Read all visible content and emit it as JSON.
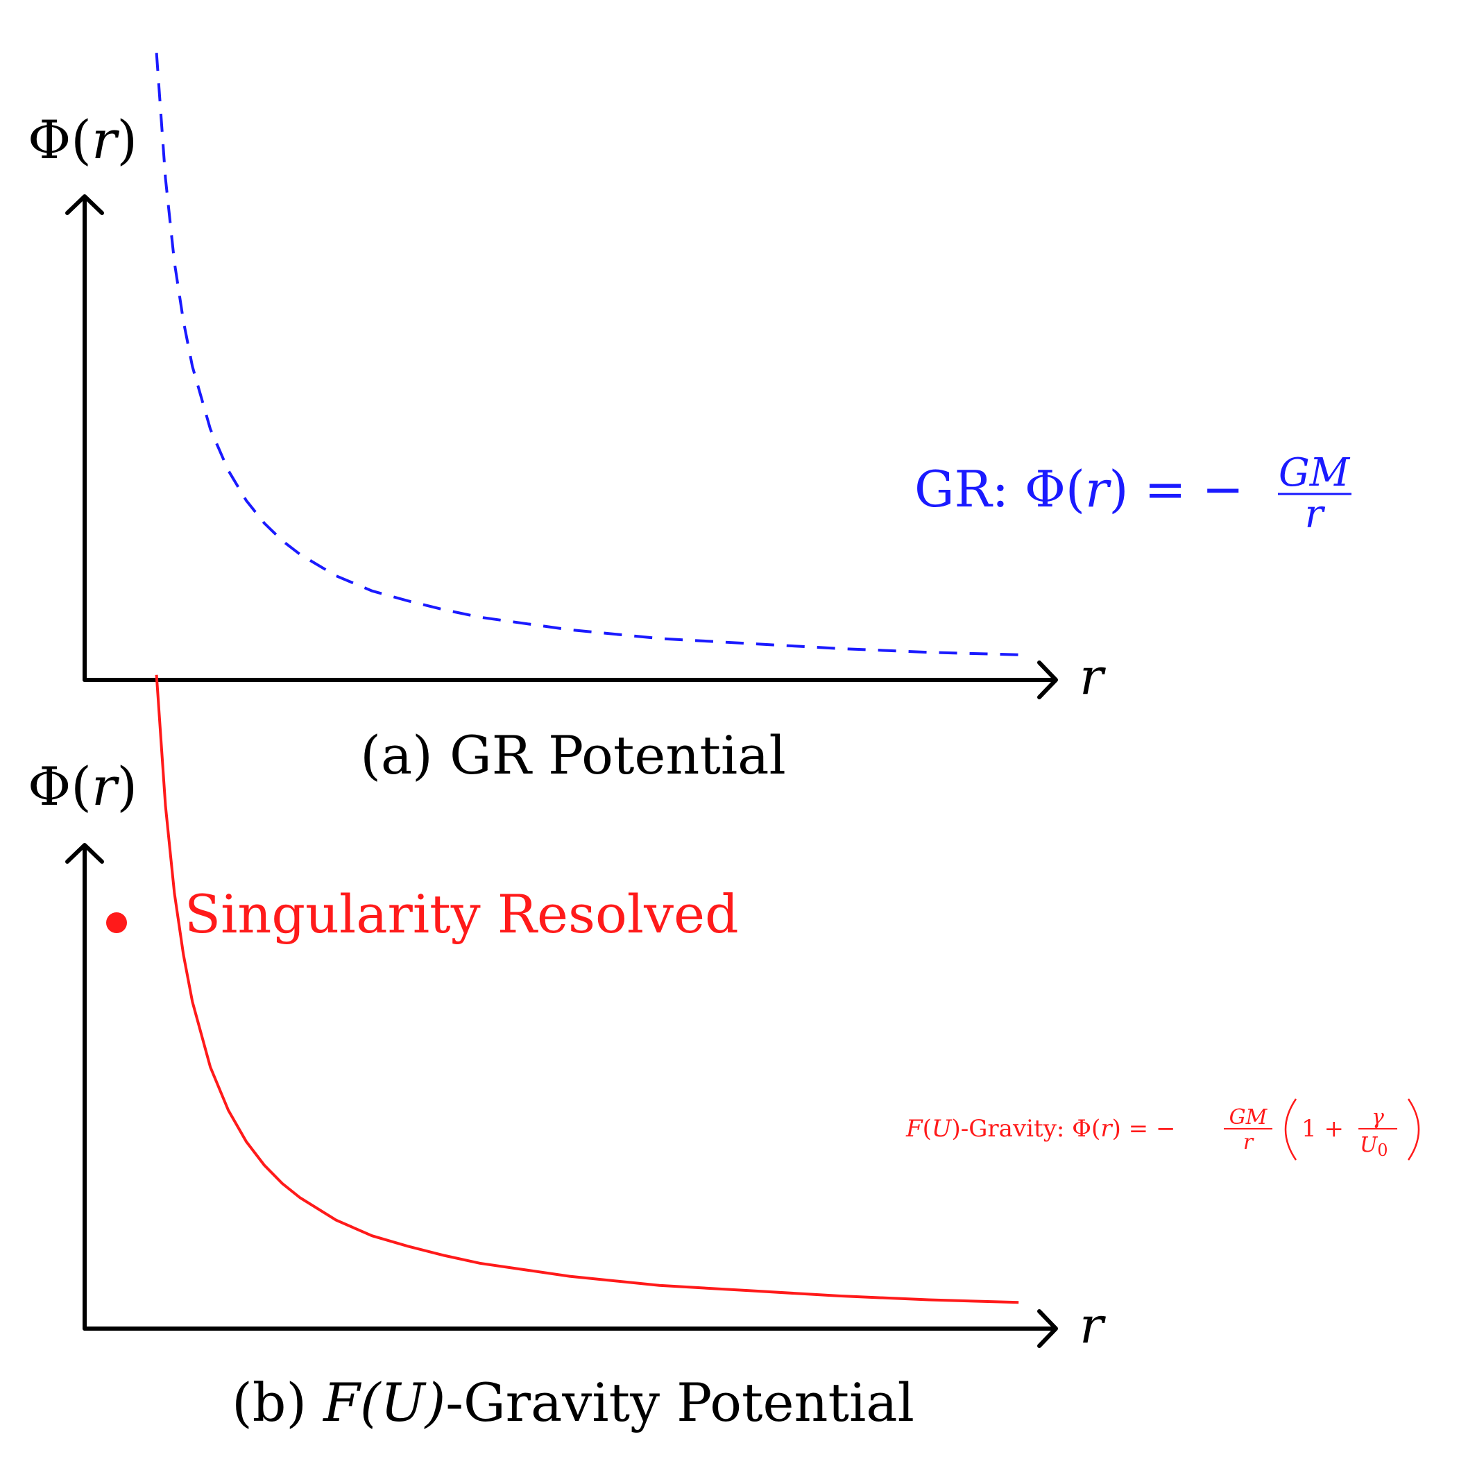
{
  "chart_data": [
    {
      "type": "line",
      "panel": "a",
      "caption": "(a) GR Potential",
      "ylabel_prefix": "Φ(",
      "ylabel_var": "r",
      "ylabel_suffix": ")",
      "xlabel": "r",
      "series": [
        {
          "name": "GR: Φ(r) = −GM/r",
          "legend_prefix": "GR: Φ(",
          "legend_var": "r",
          "legend_mid": ") = −",
          "legend_num": "GM",
          "legend_den": "r",
          "color": "#1a1aff",
          "style": "dashed",
          "x": [
            0.2,
            0.25,
            0.3,
            0.35,
            0.4,
            0.5,
            0.6,
            0.7,
            0.8,
            0.9,
            1.0,
            1.2,
            1.4,
            1.6,
            1.8,
            2.0,
            2.5,
            3.0,
            3.5,
            4.0,
            4.5,
            5.0
          ],
          "y": [
            5.0,
            4.0,
            3.33,
            2.86,
            2.5,
            2.0,
            1.67,
            1.43,
            1.25,
            1.11,
            1.0,
            0.83,
            0.71,
            0.63,
            0.56,
            0.5,
            0.4,
            0.33,
            0.29,
            0.25,
            0.22,
            0.2
          ]
        }
      ],
      "xlim": [
        -0.2,
        5.2
      ],
      "ylim": [
        0,
        5.2
      ]
    },
    {
      "type": "line",
      "panel": "b",
      "caption_prefix": "(b) ",
      "caption_var": "F(U)",
      "caption_suffix": "-Gravity Potential",
      "ylabel_prefix": "Φ(",
      "ylabel_var": "r",
      "ylabel_suffix": ")",
      "xlabel": "r",
      "annotation": "Singularity Resolved",
      "series": [
        {
          "name": "F(U)-Gravity: Φ(r) = −GM/r (1 + γ/U0)",
          "legend_a": "F",
          "legend_b": "(",
          "legend_c": "U",
          "legend_d": ")-Gravity: Φ(",
          "legend_e": "r",
          "legend_f": ") = −",
          "legend_num": "GM",
          "legend_den": "r",
          "legend_g": "1 +",
          "legend_gamma": "γ",
          "legend_u0": "U",
          "legend_sub": "0",
          "color": "#ff1a1a",
          "style": "solid",
          "x": [
            0.2,
            0.25,
            0.3,
            0.35,
            0.4,
            0.5,
            0.6,
            0.7,
            0.8,
            0.9,
            1.0,
            1.2,
            1.4,
            1.6,
            1.8,
            2.0,
            2.5,
            3.0,
            3.5,
            4.0,
            4.5,
            5.0
          ],
          "y": [
            5.0,
            4.0,
            3.33,
            2.86,
            2.5,
            2.0,
            1.67,
            1.43,
            1.25,
            1.11,
            1.0,
            0.83,
            0.71,
            0.63,
            0.56,
            0.5,
            0.4,
            0.33,
            0.29,
            0.25,
            0.22,
            0.2
          ]
        }
      ],
      "xlim": [
        -0.2,
        5.2
      ],
      "ylim": [
        0,
        5.2
      ]
    }
  ]
}
